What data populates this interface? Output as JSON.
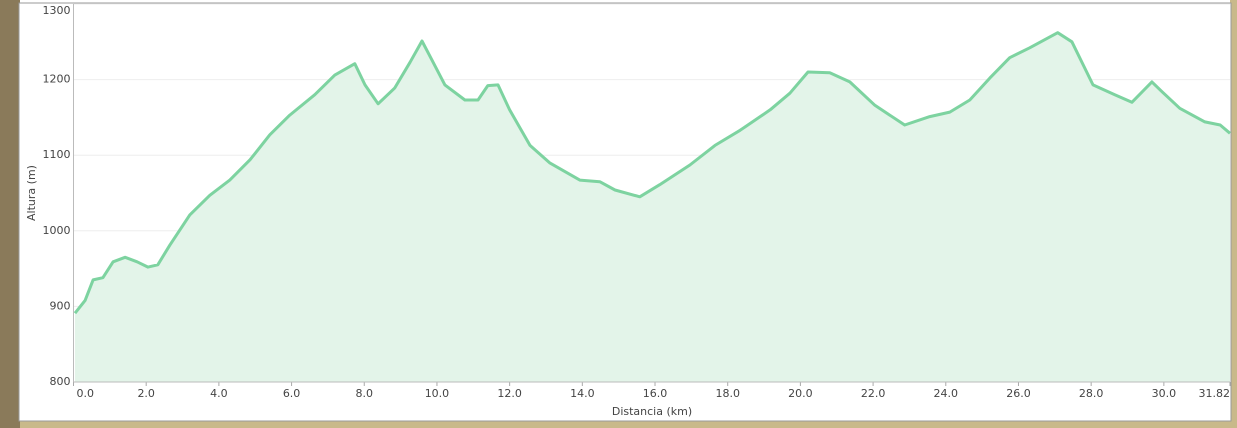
{
  "chart_data": {
    "type": "area",
    "x_label": "Distancia   (km)",
    "y_label": "Altura (m)",
    "color": "#7dd3a0",
    "fill": "#e3f4e9",
    "grid": true,
    "xlim": [
      0,
      31.82
    ],
    "xticks": [
      {
        "value": 0,
        "label": "0.0"
      },
      {
        "value": 2,
        "label": "2.0"
      },
      {
        "value": 4,
        "label": "4.0"
      },
      {
        "value": 6,
        "label": "6.0"
      },
      {
        "value": 8,
        "label": "8.0"
      },
      {
        "value": 10,
        "label": "10.0"
      },
      {
        "value": 12,
        "label": "12.0"
      },
      {
        "value": 14,
        "label": "14.0"
      },
      {
        "value": 16,
        "label": "16.0"
      },
      {
        "value": 18,
        "label": "18.0"
      },
      {
        "value": 20,
        "label": "20.0"
      },
      {
        "value": 22,
        "label": "22.0"
      },
      {
        "value": 24,
        "label": "24.0"
      },
      {
        "value": 26,
        "label": "26.0"
      },
      {
        "value": 28,
        "label": "28.0"
      },
      {
        "value": 30,
        "label": "30.0"
      },
      31.82
    ],
    "ylim": [
      800,
      1300
    ],
    "yticks": [
      800,
      900,
      1000,
      1100,
      1200,
      1300
    ],
    "x": [
      0.04,
      0.32,
      0.54,
      0.81,
      1.09,
      1.42,
      1.75,
      2.05,
      2.32,
      2.65,
      3.2,
      3.75,
      4.3,
      4.86,
      5.4,
      5.95,
      6.64,
      7.19,
      7.74,
      8.02,
      8.38,
      8.84,
      9.26,
      9.59,
      9.86,
      10.22,
      10.77,
      11.13,
      11.4,
      11.68,
      12.0,
      12.56,
      13.1,
      13.93,
      14.48,
      14.9,
      15.58,
      16.13,
      16.96,
      17.65,
      18.34,
      19.17,
      19.71,
      20.21,
      20.81,
      21.36,
      22.05,
      22.87,
      23.56,
      24.11,
      24.66,
      25.21,
      25.76,
      26.31,
      27.08,
      27.47,
      28.05,
      28.65,
      29.12,
      29.67,
      29.95,
      30.44,
      31.13,
      31.55,
      31.82
    ],
    "values": [
      891,
      908,
      935,
      938,
      959,
      965,
      959,
      952,
      955,
      981,
      1021,
      1047,
      1067,
      1094,
      1127,
      1153,
      1180,
      1206,
      1221,
      1193,
      1168,
      1189,
      1223,
      1251,
      1226,
      1193,
      1173,
      1173,
      1192,
      1193,
      1160,
      1113,
      1090,
      1067,
      1065,
      1054,
      1045,
      1061,
      1087,
      1113,
      1133,
      1160,
      1182,
      1210,
      1209,
      1197,
      1166,
      1140,
      1151,
      1157,
      1173,
      1202,
      1229,
      1242,
      1262,
      1250,
      1193,
      1180,
      1170,
      1197,
      1184,
      1162,
      1144,
      1140,
      1129
    ]
  }
}
